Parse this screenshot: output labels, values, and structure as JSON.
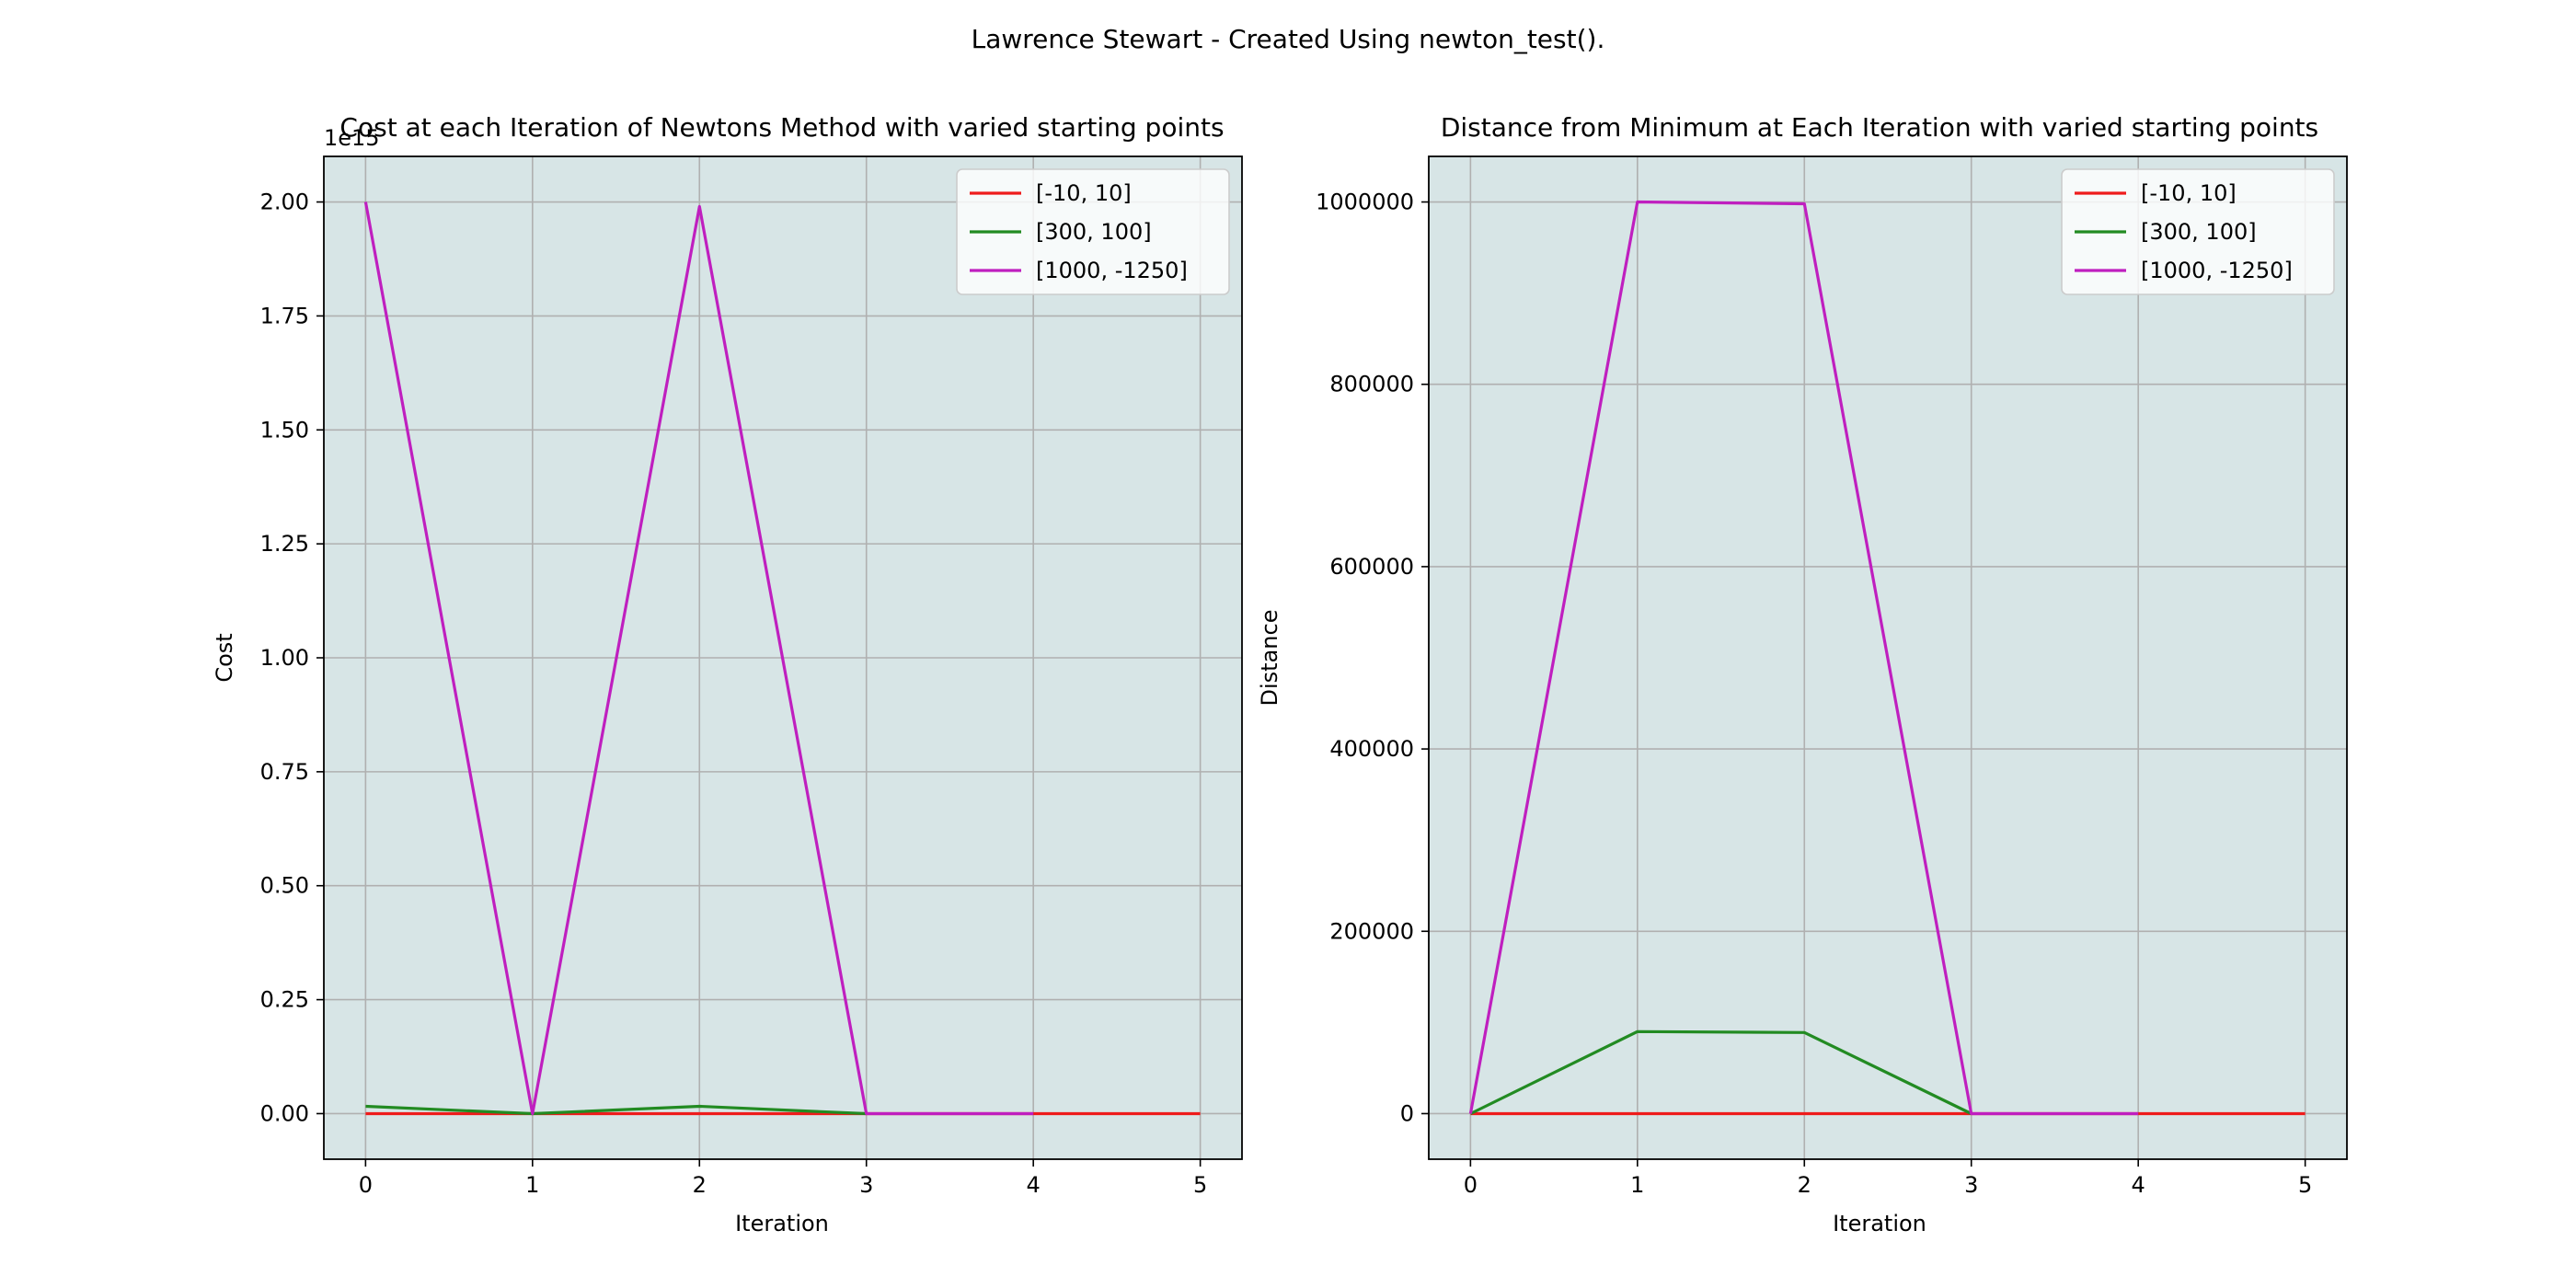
{
  "suptitle": "Lawrence Stewart - Created Using newton_test().",
  "colors": {
    "background": "#d7e5e6",
    "grid": "#b0b0b0",
    "series": [
      "#ee1c1c",
      "#228b22",
      "#bf1fbf"
    ]
  },
  "chart_data": [
    {
      "type": "line",
      "title": "Cost at each Iteration of Newtons Method with varied starting points",
      "xlabel": "Iteration",
      "ylabel": "Cost",
      "offset_label": "1e15",
      "xlim": [
        -0.25,
        5.25
      ],
      "ylim": [
        -0.1,
        2.1
      ],
      "y_scale": 1000000000000000.0,
      "x_ticks": [
        "0",
        "1",
        "2",
        "3",
        "4",
        "5"
      ],
      "y_ticks": [
        "0.00",
        "0.25",
        "0.50",
        "0.75",
        "1.00",
        "1.25",
        "1.50",
        "1.75",
        "2.00"
      ],
      "y_tick_values": [
        0,
        0.25,
        0.5,
        0.75,
        1.0,
        1.25,
        1.5,
        1.75,
        2.0
      ],
      "grid": true,
      "legend_position": "top-right",
      "series": [
        {
          "name": "[-10, 10]",
          "x": [
            0,
            1,
            2,
            3,
            4,
            5
          ],
          "y": [
            0,
            0,
            0,
            0,
            0,
            0
          ]
        },
        {
          "name": "[300, 100]",
          "x": [
            0,
            1,
            2,
            3
          ],
          "y": [
            0.016,
            0,
            0.016,
            0
          ]
        },
        {
          "name": "[1000, -1250]",
          "x": [
            0,
            1,
            2,
            3,
            4
          ],
          "y": [
            2.0,
            0,
            1.99,
            0,
            0
          ]
        }
      ]
    },
    {
      "type": "line",
      "title": "Distance from Minimum at Each Iteration with varied starting points",
      "xlabel": "Iteration",
      "ylabel": "Distance",
      "xlim": [
        -0.25,
        5.25
      ],
      "ylim": [
        -50000,
        1050000
      ],
      "y_scale": 1,
      "x_ticks": [
        "0",
        "1",
        "2",
        "3",
        "4",
        "5"
      ],
      "y_ticks": [
        "0",
        "200000",
        "400000",
        "600000",
        "800000",
        "1000000"
      ],
      "y_tick_values": [
        0,
        200000,
        400000,
        600000,
        800000,
        1000000
      ],
      "grid": true,
      "legend_position": "top-right",
      "series": [
        {
          "name": "[-10, 10]",
          "x": [
            0,
            1,
            2,
            3,
            4,
            5
          ],
          "y": [
            0,
            0,
            0,
            0,
            0,
            0
          ]
        },
        {
          "name": "[300, 100]",
          "x": [
            0,
            1,
            2,
            3
          ],
          "y": [
            0,
            90000,
            89000,
            0
          ]
        },
        {
          "name": "[1000, -1250]",
          "x": [
            0,
            1,
            2,
            3,
            4
          ],
          "y": [
            0,
            1000000,
            998000,
            0,
            0
          ]
        }
      ]
    }
  ]
}
